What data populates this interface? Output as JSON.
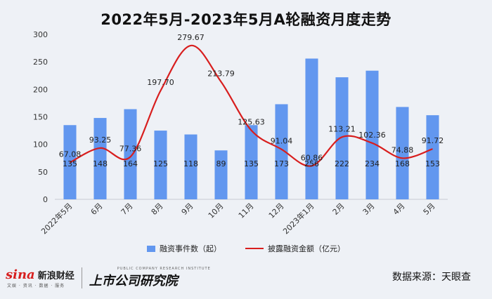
{
  "title": "2022年5月-2023年5月A轮融资月度走势",
  "chart_data": {
    "type": "bar",
    "categories": [
      "2022年5月",
      "6月",
      "7月",
      "8月",
      "9月",
      "10月",
      "11月",
      "12月",
      "2023年1月",
      "2月",
      "3月",
      "4月",
      "5月"
    ],
    "series": [
      {
        "name": "融资事件数（起）",
        "type": "bar",
        "color": "#6297ef",
        "values": [
          135,
          148,
          164,
          125,
          118,
          89,
          135,
          173,
          256,
          222,
          234,
          168,
          153
        ]
      },
      {
        "name": "披露融资金额（亿元）",
        "type": "line",
        "color": "#d81e1e",
        "values": [
          67.08,
          93.25,
          77.36,
          197.7,
          279.67,
          213.79,
          125.63,
          91.04,
          60.86,
          113.21,
          102.36,
          74.88,
          91.72
        ]
      }
    ],
    "bar_labels": [
      "135",
      "148",
      "164",
      "125",
      "118",
      "89",
      "135",
      "173",
      "256",
      "222",
      "234",
      "168",
      "153"
    ],
    "line_labels": [
      "67.08",
      "93.25",
      "77.36",
      "197.70",
      "279.67",
      "213.79",
      "125.63",
      "91.04",
      "60.86",
      "113.21",
      "102.36",
      "74.88",
      "91.72"
    ],
    "ylim": [
      0,
      300
    ],
    "yticks": [
      "0",
      "50",
      "100",
      "150",
      "200",
      "250",
      "300"
    ],
    "grid": false,
    "legend_position": "bottom"
  },
  "legend": {
    "bar": "融资事件数（起）",
    "line": "披露融资金额（亿元）"
  },
  "footer": {
    "sina_logo": "sina",
    "sina_name": "新浪财经",
    "sina_sub": "文娱 · 资讯 · 数据 · 服务",
    "listco_en": "PUBLIC COMPANY RESEARCH INSTITUTE",
    "listco_cn": "上市公司研究院",
    "source": "数据来源：天眼查"
  }
}
